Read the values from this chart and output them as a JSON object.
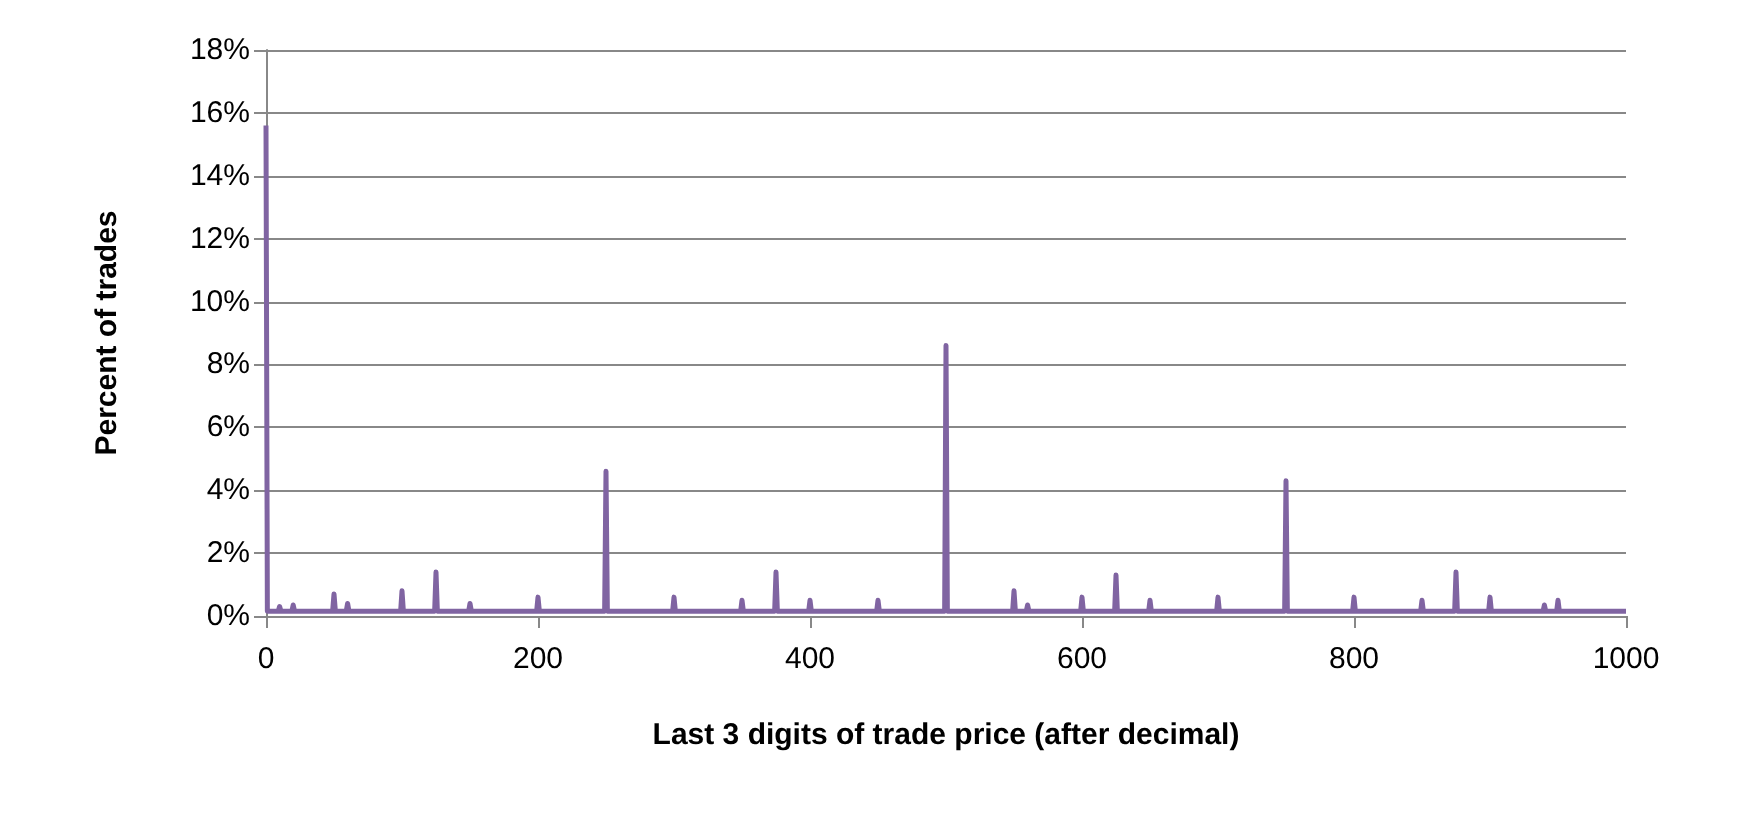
{
  "chart_data": {
    "type": "line",
    "xlabel": "Last 3 digits of trade price (after decimal)",
    "ylabel": "Percent of trades",
    "x": [
      0,
      1,
      9,
      10,
      11,
      19,
      20,
      21,
      49,
      50,
      51,
      59,
      60,
      61,
      99,
      100,
      101,
      124,
      125,
      126,
      149,
      150,
      151,
      199,
      200,
      201,
      249,
      250,
      251,
      299,
      300,
      301,
      349,
      350,
      351,
      374,
      375,
      376,
      399,
      400,
      401,
      449,
      450,
      451,
      499,
      500,
      501,
      549,
      550,
      551,
      559,
      560,
      561,
      599,
      600,
      601,
      624,
      625,
      626,
      649,
      650,
      651,
      699,
      700,
      701,
      749,
      750,
      751,
      799,
      800,
      801,
      849,
      850,
      851,
      874,
      875,
      876,
      899,
      900,
      901,
      939,
      940,
      941,
      949,
      950,
      951,
      1000
    ],
    "series": [
      {
        "color": "#8064a2",
        "values": [
          15.6,
          0.15,
          0.15,
          0.3,
          0.15,
          0.15,
          0.35,
          0.15,
          0.15,
          0.7,
          0.15,
          0.15,
          0.4,
          0.15,
          0.15,
          0.8,
          0.15,
          0.15,
          1.4,
          0.15,
          0.15,
          0.4,
          0.15,
          0.15,
          0.6,
          0.15,
          0.15,
          4.6,
          0.15,
          0.15,
          0.6,
          0.15,
          0.15,
          0.5,
          0.15,
          0.15,
          1.4,
          0.15,
          0.15,
          0.5,
          0.15,
          0.15,
          0.5,
          0.15,
          0.15,
          8.6,
          0.15,
          0.15,
          0.8,
          0.15,
          0.15,
          0.35,
          0.15,
          0.15,
          0.6,
          0.15,
          0.15,
          1.3,
          0.15,
          0.15,
          0.5,
          0.15,
          0.15,
          0.6,
          0.15,
          0.15,
          4.3,
          0.15,
          0.15,
          0.6,
          0.15,
          0.15,
          0.5,
          0.15,
          0.15,
          1.4,
          0.15,
          0.15,
          0.6,
          0.15,
          0.15,
          0.35,
          0.15,
          0.15,
          0.5,
          0.15,
          0.15
        ]
      }
    ],
    "xlim": [
      0,
      1000
    ],
    "xticks": [
      0,
      200,
      400,
      600,
      800,
      1000
    ],
    "ylim": [
      0,
      18
    ],
    "yticks": [
      {
        "value": 0,
        "label": "0%"
      },
      {
        "value": 2,
        "label": "2%"
      },
      {
        "value": 4,
        "label": "4%"
      },
      {
        "value": 6,
        "label": "6%"
      },
      {
        "value": 8,
        "label": "8%"
      },
      {
        "value": 10,
        "label": "10%"
      },
      {
        "value": 12,
        "label": "12%"
      },
      {
        "value": 14,
        "label": "14%"
      },
      {
        "value": 16,
        "label": "16%"
      },
      {
        "value": 18,
        "label": "18%"
      }
    ],
    "grid": "y",
    "marker": "none",
    "line_style": "solid"
  }
}
